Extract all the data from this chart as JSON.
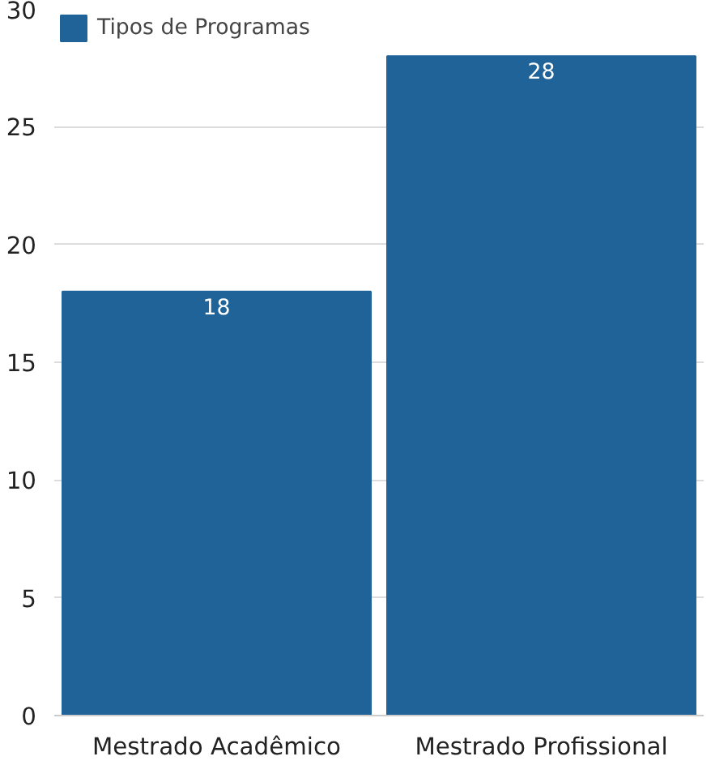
{
  "chart_data": {
    "type": "bar",
    "categories": [
      "Mestrado Acadêmico",
      "Mestrado Profissional"
    ],
    "series": [
      {
        "name": "Tipos de Programas",
        "color": "#1f6399",
        "values": [
          18,
          28
        ]
      }
    ],
    "ylim": [
      0,
      30
    ],
    "yticks": [
      0,
      5,
      10,
      15,
      20,
      25,
      30
    ],
    "grid": "y",
    "legend": "top left",
    "data_labels": true
  }
}
